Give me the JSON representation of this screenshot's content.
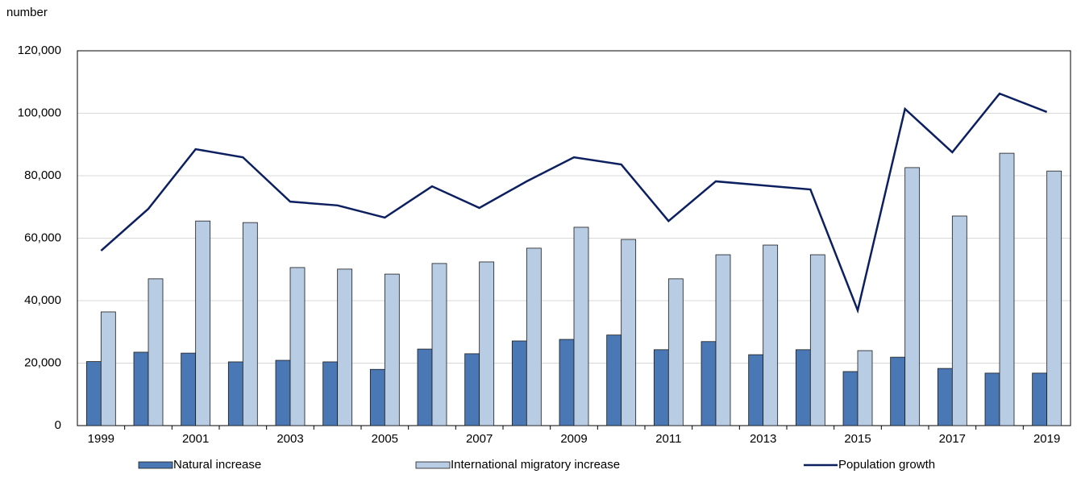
{
  "chart_data": {
    "type": "bar-line",
    "y_label": "number",
    "categories": [
      "1999",
      null,
      "2001",
      null,
      "2003",
      null,
      "2005",
      null,
      "2007",
      null,
      "2009",
      null,
      "2011",
      null,
      "2013",
      null,
      "2015",
      null,
      "2017",
      null,
      "2019"
    ],
    "series": [
      {
        "name": "Natural increase",
        "type": "bar",
        "color": "#4a78b5",
        "values": [
          20500,
          23500,
          23200,
          20400,
          20900,
          20400,
          18000,
          24500,
          23000,
          27100,
          27600,
          29000,
          24300,
          26900,
          22700,
          24300,
          17300,
          21900,
          18300,
          16800,
          16800
        ]
      },
      {
        "name": "International migratory increase",
        "type": "bar",
        "color": "#b8cce4",
        "values": [
          36400,
          47000,
          65500,
          65000,
          50600,
          50100,
          48500,
          51900,
          52400,
          56800,
          63500,
          59600,
          47000,
          54700,
          57800,
          54700,
          24000,
          82600,
          67100,
          87200,
          81500
        ]
      },
      {
        "name": "Population growth",
        "type": "line",
        "color": "#0c2060",
        "values": [
          56000,
          69400,
          88500,
          85900,
          71700,
          70500,
          66600,
          76600,
          69700,
          78200,
          85900,
          83600,
          65500,
          78200,
          76900,
          75600,
          36900,
          101400,
          87500,
          106300,
          100400
        ]
      }
    ],
    "ylim": [
      0,
      120000
    ],
    "yticks": [
      0,
      {
        "value": 20000,
        "label": "20,000"
      },
      {
        "value": 40000,
        "label": "40,000"
      },
      {
        "value": 60000,
        "label": "60,000"
      },
      {
        "value": 80000,
        "label": "80,000"
      },
      {
        "value": 100000,
        "label": "100,000"
      },
      {
        "value": 120000,
        "label": "120,000"
      }
    ],
    "grid": true
  }
}
